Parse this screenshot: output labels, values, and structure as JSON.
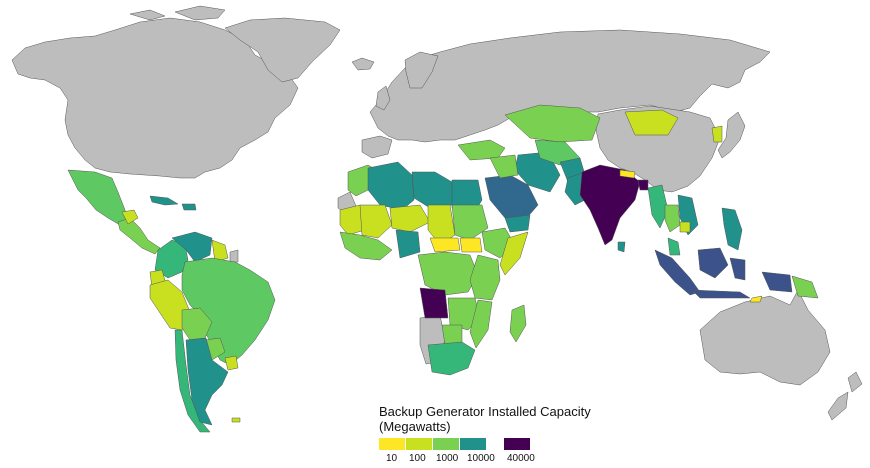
{
  "legend": {
    "title_line1": "Backup Generator Installed Capacity",
    "title_line2": "(Megawatts)",
    "items": [
      {
        "label": "10",
        "color": "#fde725"
      },
      {
        "label": "100",
        "color": "#c8e020"
      },
      {
        "label": "1000",
        "color": "#7ad151"
      },
      {
        "label": "10000",
        "color": "#21918c"
      },
      {
        "label": "40000",
        "color": "#440154"
      }
    ]
  },
  "colors": {
    "no_data": "#bdbdbd",
    "outline": "#555555",
    "ocean": "#ffffff",
    "tier_10": "#fde725",
    "tier_100": "#c8e020",
    "tier_1000": "#7ad151",
    "tier_1000b": "#5ec962",
    "tier_3000": "#35b779",
    "tier_10000": "#21918c",
    "tier_20000": "#31688e",
    "tier_30000": "#3b528b",
    "tier_40000": "#440154"
  }
}
